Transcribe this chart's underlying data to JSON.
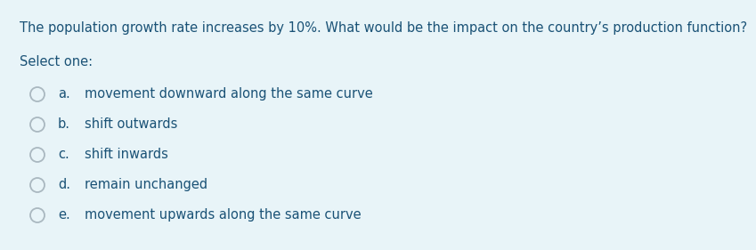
{
  "background_color": "#e8f4f8",
  "question_text": "The population growth rate increases by 10%. What would be the impact on the country’s production function?",
  "question_color": "#1a5276",
  "select_text": "Select one:",
  "select_color": "#1a5276",
  "options": [
    {
      "letter": "a.",
      "text": "movement downward along the same curve"
    },
    {
      "letter": "b.",
      "text": "shift outwards"
    },
    {
      "letter": "c.",
      "text": "shift inwards"
    },
    {
      "letter": "d.",
      "text": "remain unchanged"
    },
    {
      "letter": "e.",
      "text": "movement upwards along the same curve"
    }
  ],
  "option_letter_color": "#1a5276",
  "option_text_color": "#1a5276",
  "circle_edge_color": "#aab8c0",
  "question_fontsize": 10.5,
  "select_fontsize": 10.5,
  "option_fontsize": 10.5
}
